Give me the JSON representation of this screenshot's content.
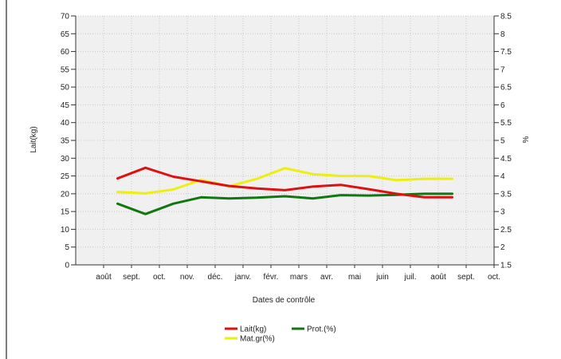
{
  "chart_data": {
    "type": "line",
    "xlabel": "Dates de contrôle",
    "ylabel": "Lait(kg)",
    "y2label": "%",
    "categories": [
      "août",
      "sept.",
      "oct.",
      "nov.",
      "déc.",
      "janv.",
      "févr.",
      "mars",
      "avr.",
      "mai",
      "juin",
      "juil.",
      "août",
      "sept.",
      "oct."
    ],
    "ylim": [
      0,
      70
    ],
    "y_ticks": [
      0,
      5,
      10,
      15,
      20,
      25,
      30,
      35,
      40,
      45,
      50,
      55,
      60,
      65,
      70
    ],
    "y2lim": [
      1.5,
      8.5
    ],
    "y2_ticks": [
      1.5,
      2,
      2.5,
      3,
      3.5,
      4,
      4.5,
      5,
      5.5,
      6,
      6.5,
      7,
      7.5,
      8,
      8.5
    ],
    "grid": true,
    "legend_position": "bottom",
    "series": [
      {
        "name": "Lait(kg)",
        "axis": "left",
        "color": "#dd1111",
        "x": [
          1.5,
          2.5,
          3.5,
          4.5,
          5.5,
          6.5,
          7.5,
          8.5,
          9.5,
          10.5,
          11.5,
          12.5,
          13.5
        ],
        "values": [
          24.3,
          27.3,
          24.8,
          23.5,
          22.2,
          21.5,
          21.0,
          22.0,
          22.5,
          21.3,
          20.0,
          19.0,
          19.0
        ]
      },
      {
        "name": "Prot.(%)",
        "axis": "right",
        "color": "#117711",
        "x": [
          1.5,
          2.5,
          3.5,
          4.5,
          5.5,
          6.5,
          7.5,
          8.5,
          9.5,
          10.5,
          11.5,
          12.5,
          13.5
        ],
        "values": [
          3.22,
          2.93,
          3.22,
          3.4,
          3.37,
          3.39,
          3.43,
          3.37,
          3.46,
          3.45,
          3.47,
          3.5,
          3.5
        ]
      },
      {
        "name": "Mat.gr(%)",
        "axis": "right",
        "color": "#eeee11",
        "x": [
          1.5,
          2.5,
          3.5,
          4.5,
          5.5,
          6.5,
          7.5,
          8.5,
          9.5,
          10.5,
          11.5,
          12.5,
          13.5
        ],
        "values": [
          3.55,
          3.51,
          3.62,
          3.89,
          3.71,
          3.92,
          4.22,
          4.05,
          4.0,
          4.0,
          3.88,
          3.92,
          3.92
        ]
      }
    ]
  }
}
